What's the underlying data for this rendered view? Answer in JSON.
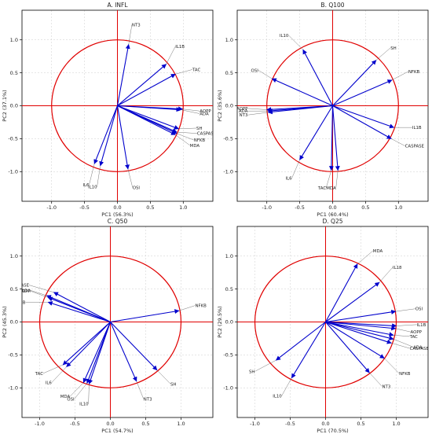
{
  "figure": {
    "colors": {
      "vector": "#0000cc",
      "circle": "#e00000",
      "axis_line": "#e00000",
      "grid": "#cccccc",
      "leader": "#555555"
    }
  },
  "chart_data": [
    {
      "type": "scatter",
      "title": "A. INFL",
      "xlabel": "PC1 (56.3%)",
      "ylabel": "PC2 (37.1%)",
      "xlim": [
        -1.45,
        1.45
      ],
      "ylim": [
        -1.45,
        1.45
      ],
      "xticks": [
        -1.0,
        -0.5,
        0.0,
        0.5,
        1.0
      ],
      "yticks": [
        -1.0,
        -0.5,
        0.0,
        0.5,
        1.0
      ],
      "tick_labels": [
        "-1.0",
        "-0.5",
        "0.0",
        "0.5",
        "1.0"
      ],
      "grid": true,
      "circle_radius": 1.0,
      "vectors": [
        {
          "label": "NT3",
          "x": 0.17,
          "y": 0.93,
          "lx": 0.22,
          "ly": 1.23
        },
        {
          "label": "IL1B",
          "x": 0.74,
          "y": 0.63,
          "lx": 0.88,
          "ly": 0.9
        },
        {
          "label": "TAC",
          "x": 0.88,
          "y": 0.48,
          "lx": 1.14,
          "ly": 0.55
        },
        {
          "label": "AOPP",
          "x": 0.99,
          "y": -0.05,
          "lx": 1.25,
          "ly": -0.08
        },
        {
          "label": "ADA",
          "x": 0.96,
          "y": -0.06,
          "lx": 1.25,
          "ly": -0.12
        },
        {
          "label": "SH",
          "x": 0.93,
          "y": -0.35,
          "lx": 1.2,
          "ly": -0.34
        },
        {
          "label": "CASPASE",
          "x": 0.9,
          "y": -0.4,
          "lx": 1.21,
          "ly": -0.42
        },
        {
          "label": "NFKB",
          "x": 0.9,
          "y": -0.42,
          "lx": 1.16,
          "ly": -0.52
        },
        {
          "label": "MDA",
          "x": 0.88,
          "y": -0.44,
          "lx": 1.1,
          "ly": -0.6
        },
        {
          "label": "IL6",
          "x": -0.35,
          "y": -0.88,
          "lx": -0.43,
          "ly": -1.2
        },
        {
          "label": "IL10",
          "x": -0.26,
          "y": -0.91,
          "lx": -0.31,
          "ly": -1.23
        },
        {
          "label": "OSI",
          "x": 0.16,
          "y": -0.96,
          "lx": 0.23,
          "ly": -1.24
        }
      ]
    },
    {
      "type": "scatter",
      "title": "B. Q100",
      "xlabel": "PC1 (60.4%)",
      "ylabel": "PC2 (35.6%)",
      "xlim": [
        -1.45,
        1.45
      ],
      "ylim": [
        -1.45,
        1.45
      ],
      "xticks": [
        -1.0,
        -0.5,
        0.0,
        0.5,
        1.0
      ],
      "yticks": [
        -1.0,
        -0.5,
        0.0,
        0.5,
        1.0
      ],
      "tick_labels": [
        "-1.0",
        "-0.5",
        "0.0",
        "0.5",
        "1.0"
      ],
      "grid": true,
      "circle_radius": 1.0,
      "vectors": [
        {
          "label": "IL10",
          "x": -0.45,
          "y": 0.85,
          "lx": -0.67,
          "ly": 1.07
        },
        {
          "label": "SH",
          "x": 0.66,
          "y": 0.69,
          "lx": 0.88,
          "ly": 0.88
        },
        {
          "label": "OSI",
          "x": -0.92,
          "y": 0.41,
          "lx": -1.13,
          "ly": 0.54
        },
        {
          "label": "NFKB",
          "x": 0.9,
          "y": 0.39,
          "lx": 1.15,
          "ly": 0.52
        },
        {
          "label": "AOPP",
          "x": -1.0,
          "y": -0.06,
          "lx": -1.29,
          "ly": -0.04
        },
        {
          "label": "ADA",
          "x": -0.98,
          "y": -0.08,
          "lx": -1.29,
          "ly": -0.08
        },
        {
          "label": "NT3",
          "x": -0.98,
          "y": -0.1,
          "lx": -1.29,
          "ly": -0.14
        },
        {
          "label": "IL1B",
          "x": 0.93,
          "y": -0.33,
          "lx": 1.21,
          "ly": -0.33
        },
        {
          "label": "CASPASE",
          "x": 0.89,
          "y": -0.5,
          "lx": 1.1,
          "ly": -0.61
        },
        {
          "label": "IL6",
          "x": -0.5,
          "y": -0.82,
          "lx": -0.62,
          "ly": -1.1
        },
        {
          "label": "TAC",
          "x": -0.02,
          "y": -0.98,
          "lx": -0.1,
          "ly": -1.25
        },
        {
          "label": "MDA",
          "x": 0.08,
          "y": -0.98,
          "lx": 0.05,
          "ly": -1.25
        }
      ]
    },
    {
      "type": "scatter",
      "title": "C. Q50",
      "xlabel": "PC1 (54.7%)",
      "ylabel": "PC2 (45.3%)",
      "xlim": [
        -1.25,
        1.45
      ],
      "ylim": [
        -1.45,
        1.45
      ],
      "xticks": [
        -1.0,
        -0.5,
        0.0,
        0.5,
        1.0
      ],
      "yticks": [
        -1.0,
        -0.5,
        0.0,
        0.5,
        1.0
      ],
      "tick_labels": [
        "-1.0",
        "-0.5",
        "0.0",
        "0.5",
        "1.0"
      ],
      "grid": true,
      "circle_radius": 1.0,
      "vectors": [
        {
          "label": "CASPASE",
          "x": -0.8,
          "y": 0.45,
          "lx": -1.15,
          "ly": 0.56
        },
        {
          "label": "ADA",
          "x": -0.9,
          "y": 0.4,
          "lx": -1.13,
          "ly": 0.48
        },
        {
          "label": "AOPP",
          "x": -0.88,
          "y": 0.37,
          "lx": -1.13,
          "ly": 0.47
        },
        {
          "label": "IL1B",
          "x": -0.88,
          "y": 0.3,
          "lx": -1.2,
          "ly": 0.3
        },
        {
          "label": "NFKB",
          "x": 0.97,
          "y": 0.17,
          "lx": 1.2,
          "ly": 0.25
        },
        {
          "label": "TAC",
          "x": -0.67,
          "y": -0.65,
          "lx": -0.95,
          "ly": -0.78
        },
        {
          "label": "IL6",
          "x": -0.62,
          "y": -0.68,
          "lx": -0.83,
          "ly": -0.92
        },
        {
          "label": "SH",
          "x": 0.66,
          "y": -0.73,
          "lx": 0.85,
          "ly": -0.94
        },
        {
          "label": "NT3",
          "x": 0.37,
          "y": -0.9,
          "lx": 0.47,
          "ly": -1.17
        },
        {
          "label": "MDA",
          "x": -0.38,
          "y": -0.92,
          "lx": -0.57,
          "ly": -1.13
        },
        {
          "label": "OSI",
          "x": -0.33,
          "y": -0.93,
          "lx": -0.51,
          "ly": -1.17
        },
        {
          "label": "IL10",
          "x": -0.3,
          "y": -0.94,
          "lx": -0.31,
          "ly": -1.24
        }
      ]
    },
    {
      "type": "scatter",
      "title": "D. Q25",
      "xlabel": "PC1 (70.5%)",
      "ylabel": "PC2 (29.5%)",
      "xlim": [
        -1.25,
        1.45
      ],
      "ylim": [
        -1.45,
        1.45
      ],
      "xticks": [
        -1.0,
        -0.5,
        0.0,
        0.5,
        1.0
      ],
      "yticks": [
        -1.0,
        -0.5,
        0.0,
        0.5,
        1.0
      ],
      "tick_labels": [
        "-1.0",
        "-0.5",
        "0.0",
        "0.5",
        "1.0"
      ],
      "grid": true,
      "circle_radius": 1.0,
      "vectors": [
        {
          "label": "MDA",
          "x": 0.45,
          "y": 0.88,
          "lx": 0.67,
          "ly": 1.08
        },
        {
          "label": "IL18",
          "x": 0.76,
          "y": 0.6,
          "lx": 0.95,
          "ly": 0.83
        },
        {
          "label": "OSI",
          "x": 0.99,
          "y": 0.16,
          "lx": 1.27,
          "ly": 0.2
        },
        {
          "label": "IL1B",
          "x": 1.0,
          "y": -0.06,
          "lx": 1.29,
          "ly": -0.04
        },
        {
          "label": "AOPP",
          "x": 0.99,
          "y": -0.1,
          "lx": 1.2,
          "ly": -0.15
        },
        {
          "label": "TAC",
          "x": 0.96,
          "y": -0.2,
          "lx": 1.19,
          "ly": -0.22
        },
        {
          "label": "ADA",
          "x": 0.96,
          "y": -0.26,
          "lx": 1.24,
          "ly": -0.38
        },
        {
          "label": "CASPASE",
          "x": 0.93,
          "y": -0.32,
          "lx": 1.19,
          "ly": -0.4
        },
        {
          "label": "NFKB",
          "x": 0.83,
          "y": -0.55,
          "lx": 1.04,
          "ly": -0.78
        },
        {
          "label": "NT3",
          "x": 0.62,
          "y": -0.77,
          "lx": 0.8,
          "ly": -0.98
        },
        {
          "label": "SH",
          "x": -0.7,
          "y": -0.58,
          "lx": -1.0,
          "ly": -0.75
        },
        {
          "label": "IL10",
          "x": -0.48,
          "y": -0.85,
          "lx": -0.62,
          "ly": -1.12
        }
      ]
    }
  ]
}
